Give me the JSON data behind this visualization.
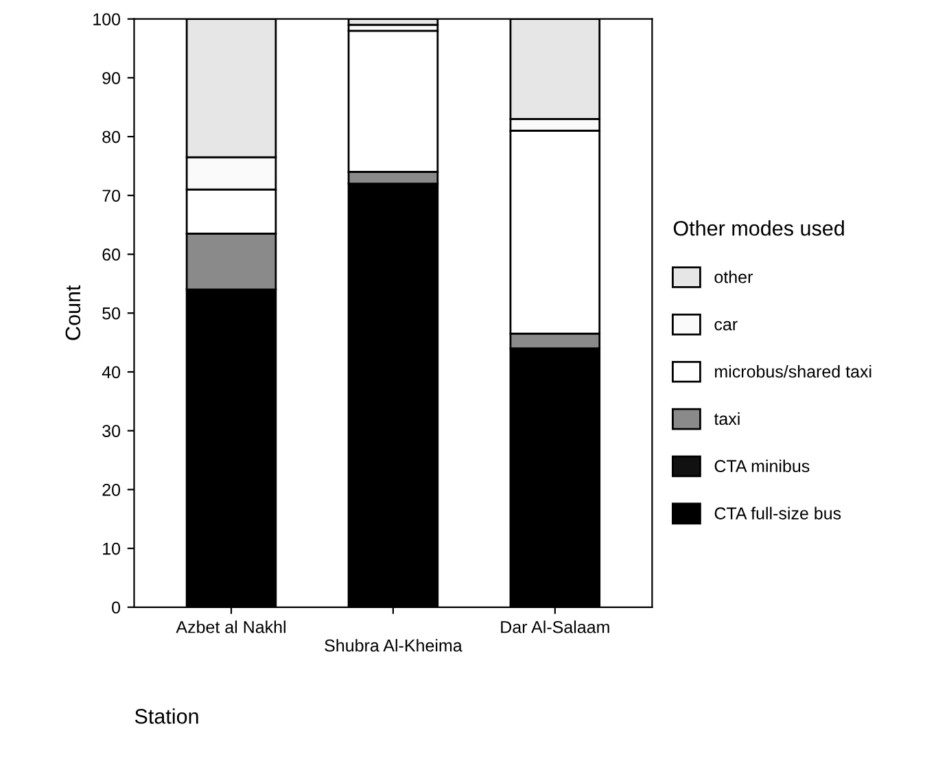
{
  "chart_data": {
    "type": "bar",
    "stacked": true,
    "xlabel": "Station",
    "ylabel": "Count",
    "legend_title": "Other modes used",
    "legend": "right",
    "categories": [
      "Azbet al Nakhl",
      "Shubra Al-Kheima",
      "Dar Al-Salaam"
    ],
    "series": [
      {
        "name": "CTA full-size bus",
        "color": "#000000",
        "values": [
          54,
          72,
          44
        ]
      },
      {
        "name": "CTA minibus",
        "color": "#111111",
        "values": [
          0,
          0,
          0
        ]
      },
      {
        "name": "taxi",
        "color": "#8a8a8a",
        "values": [
          9.5,
          2,
          2.5
        ]
      },
      {
        "name": "microbus/shared taxi",
        "color": "#ffffff",
        "values": [
          7.5,
          24,
          34.5
        ]
      },
      {
        "name": "car",
        "color": "#fafafa",
        "values": [
          5.5,
          1,
          2
        ]
      },
      {
        "name": "other",
        "color": "#e6e6e6",
        "values": [
          23.5,
          1,
          17
        ]
      }
    ],
    "ylim": [
      0,
      100
    ],
    "yticks": [
      0,
      10,
      20,
      30,
      40,
      50,
      60,
      70,
      80,
      90,
      100
    ],
    "grid": false
  }
}
